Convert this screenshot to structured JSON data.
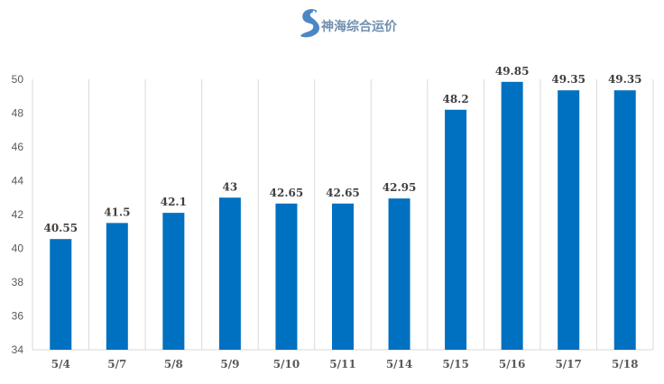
{
  "watermark": {
    "text": "神海综合运价",
    "icon": "seahorse-logo-icon",
    "color": "#6f8fb0"
  },
  "chart_data": {
    "type": "bar",
    "categories": [
      "5/4",
      "5/7",
      "5/8",
      "5/9",
      "5/10",
      "5/11",
      "5/14",
      "5/15",
      "5/16",
      "5/17",
      "5/18"
    ],
    "values": [
      40.55,
      41.5,
      42.1,
      43,
      42.65,
      42.65,
      42.95,
      48.2,
      49.85,
      49.35,
      49.35
    ],
    "value_labels": [
      "40.55",
      "41.5",
      "42.1",
      "43",
      "42.65",
      "42.65",
      "42.95",
      "48.2",
      "49.85",
      "49.35",
      "49.35"
    ],
    "ylim": [
      34,
      50
    ],
    "yticks": [
      34,
      36,
      38,
      40,
      42,
      44,
      46,
      48,
      50
    ],
    "grid": "vertical",
    "bar_color": "#0070c0",
    "title": "",
    "xlabel": "",
    "ylabel": ""
  }
}
